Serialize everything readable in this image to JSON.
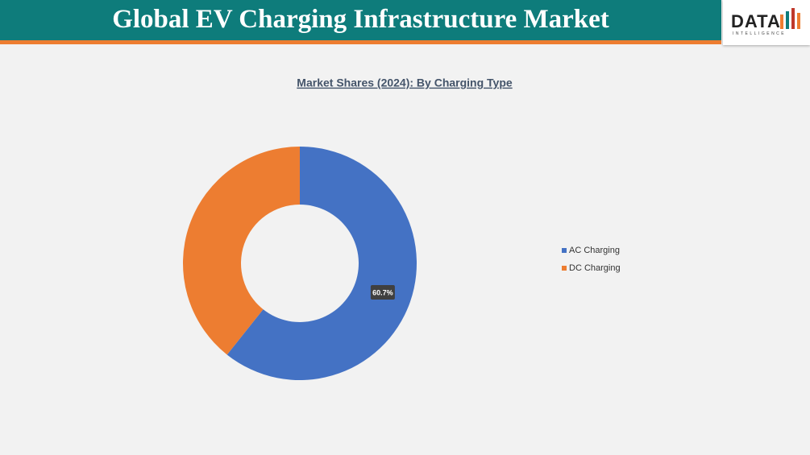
{
  "header": {
    "title": "Global EV Charging Infrastructure Market",
    "logo": {
      "main": "DATA",
      "sub": "INTELLIGENCE"
    }
  },
  "chart_data": {
    "type": "donut",
    "title": "Market Shares (2024): By Charging Type",
    "categories": [
      "AC Charging",
      "DC Charging"
    ],
    "values": [
      60.7,
      39.3
    ],
    "value_labels": [
      "60.7%",
      null
    ],
    "colors": [
      "#4472c4",
      "#ed7d31"
    ],
    "legend": "right"
  }
}
